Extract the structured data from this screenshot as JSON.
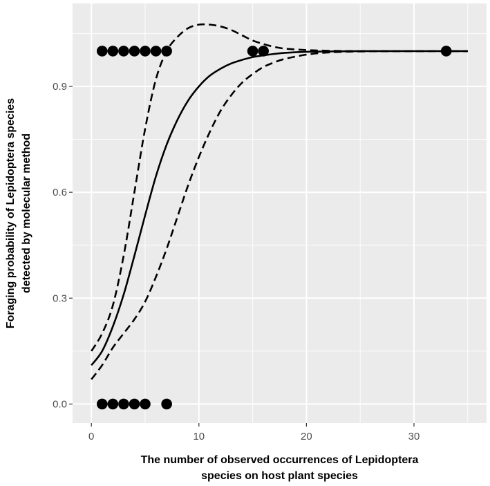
{
  "chart_data": {
    "type": "scatter",
    "title": "",
    "xlabel": [
      "The number of observed occurrences of Lepidoptera",
      "species on host plant species"
    ],
    "ylabel": [
      "Foraging probability of Lepidoptera species",
      "detected by molecular method"
    ],
    "xlim": [
      -1.75,
      36.75
    ],
    "ylim": [
      -0.054,
      1.135
    ],
    "x_ticks": [
      0,
      10,
      20,
      30
    ],
    "x_tick_labels": [
      "0",
      "10",
      "20",
      "30"
    ],
    "y_ticks": [
      0.0,
      0.3,
      0.6,
      0.9
    ],
    "y_tick_labels": [
      "0.0",
      "0.3",
      "0.6",
      "0.9"
    ],
    "grid": true,
    "legend": "none",
    "colors": {
      "panel": "#ebebeb",
      "grid": "#ffffff",
      "ink": "#000000",
      "tick_text": "#4d4d4d"
    },
    "points": [
      {
        "x": 1,
        "y": 1
      },
      {
        "x": 2,
        "y": 1
      },
      {
        "x": 3,
        "y": 1
      },
      {
        "x": 4,
        "y": 1
      },
      {
        "x": 5,
        "y": 1
      },
      {
        "x": 6,
        "y": 1
      },
      {
        "x": 7,
        "y": 1
      },
      {
        "x": 15,
        "y": 1
      },
      {
        "x": 16,
        "y": 1
      },
      {
        "x": 33,
        "y": 1
      },
      {
        "x": 1,
        "y": 0
      },
      {
        "x": 2,
        "y": 0
      },
      {
        "x": 3,
        "y": 0
      },
      {
        "x": 4,
        "y": 0
      },
      {
        "x": 5,
        "y": 0
      },
      {
        "x": 7,
        "y": 0
      }
    ],
    "fit": {
      "x": [
        0,
        1,
        2,
        3,
        4,
        5,
        6,
        7,
        8,
        9,
        10,
        11,
        12,
        13,
        14,
        15,
        16,
        17,
        18,
        20,
        22,
        25,
        30,
        35
      ],
      "y": [
        0.11,
        0.15,
        0.22,
        0.31,
        0.42,
        0.535,
        0.645,
        0.735,
        0.805,
        0.86,
        0.9,
        0.93,
        0.95,
        0.965,
        0.975,
        0.983,
        0.988,
        0.992,
        0.995,
        0.998,
        0.999,
        1.0,
        1.0,
        1.0
      ]
    },
    "upper_band": {
      "x": [
        0,
        1,
        2,
        3,
        4,
        5,
        6,
        7,
        8,
        9,
        10,
        11,
        12,
        13,
        14,
        15,
        16,
        17,
        18,
        20,
        22,
        25,
        30,
        35
      ],
      "y": [
        0.15,
        0.2,
        0.28,
        0.42,
        0.6,
        0.78,
        0.92,
        1.0,
        1.04,
        1.065,
        1.075,
        1.075,
        1.07,
        1.06,
        1.045,
        1.03,
        1.02,
        1.012,
        1.007,
        1.003,
        1.001,
        1.0,
        1.0,
        1.0
      ]
    },
    "lower_band": {
      "x": [
        0,
        1,
        2,
        3,
        4,
        5,
        6,
        7,
        8,
        9,
        10,
        11,
        12,
        13,
        14,
        15,
        16,
        17,
        18,
        20,
        22,
        25,
        30,
        35
      ],
      "y": [
        0.07,
        0.11,
        0.16,
        0.2,
        0.24,
        0.29,
        0.36,
        0.44,
        0.53,
        0.62,
        0.7,
        0.77,
        0.83,
        0.875,
        0.91,
        0.935,
        0.955,
        0.968,
        0.978,
        0.99,
        0.996,
        0.999,
        1.0,
        1.0
      ]
    }
  }
}
